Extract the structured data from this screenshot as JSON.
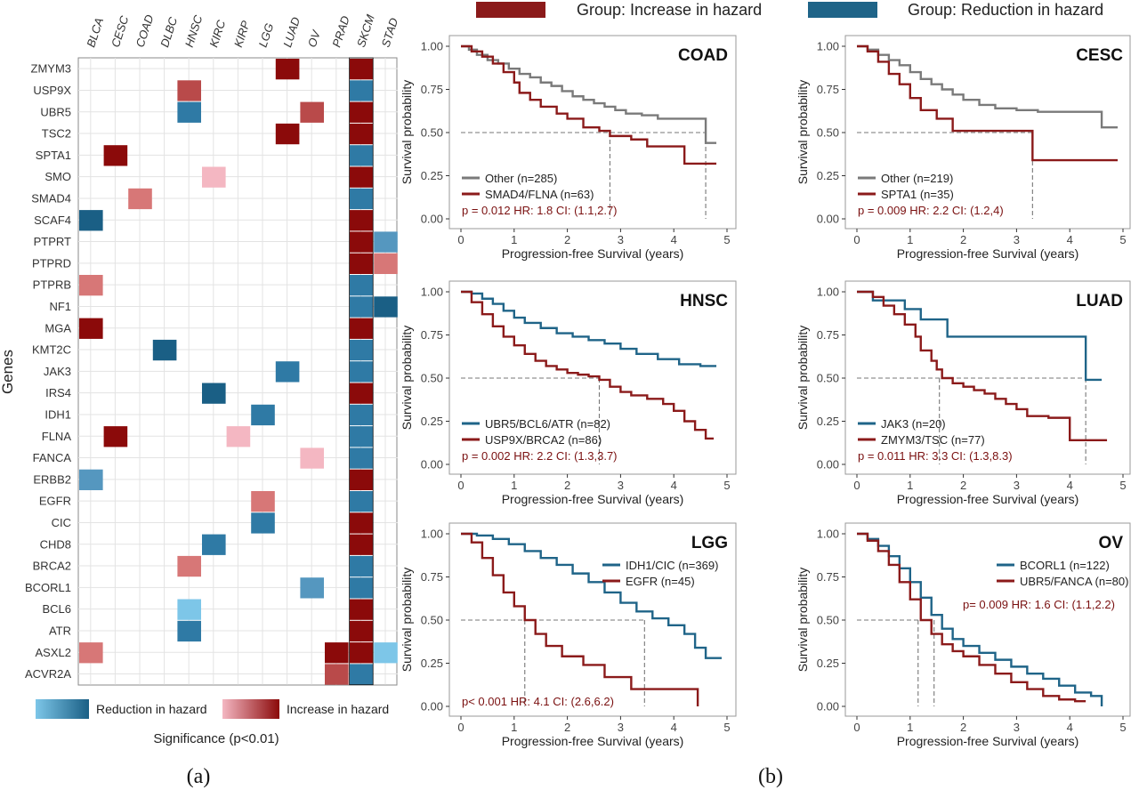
{
  "panel_labels": [
    "(a)",
    "(b)"
  ],
  "top_legend": {
    "items": [
      {
        "label": "Group: Increase in hazard",
        "color": "#8b1a1a"
      },
      {
        "label": "Group: Reduction in hazard",
        "color": "#1f6488"
      }
    ]
  },
  "heatmap": {
    "ylabel": "Genes",
    "legend": {
      "reduction_label": "Reduction in hazard",
      "increase_label": "Increase in hazard",
      "significance_label": "Significance (p<0.01)"
    },
    "colors": {
      "R3": "#1a5f85",
      "R2": "#2f7aa5",
      "R1": "#5597bf",
      "R0": "#7dc6e8",
      "I3": "#8b0a0a",
      "I2": "#b94a4a",
      "I1": "#d77777",
      "I0": "#f4b7c2"
    }
  },
  "chart_data": [
    {
      "type": "heatmap",
      "xlabel": "",
      "ylabel": "Genes",
      "columns": [
        "BLCA",
        "CESC",
        "COAD",
        "DLBC",
        "HNSC",
        "KIRC",
        "KIRP",
        "LGG",
        "LUAD",
        "OV",
        "PRAD",
        "SKCM",
        "STAD"
      ],
      "rows": [
        "ZMYM3",
        "USP9X",
        "UBR5",
        "TSC2",
        "SPTA1",
        "SMO",
        "SMAD4",
        "SCAF4",
        "PTPRT",
        "PTPRD",
        "PTPRB",
        "NF1",
        "MGA",
        "KMT2C",
        "JAK3",
        "IRS4",
        "IDH1",
        "FLNA",
        "FANCA",
        "ERBB2",
        "EGFR",
        "CIC",
        "CHD8",
        "BRCA2",
        "BCORL1",
        "BCL6",
        "ATR",
        "ASXL2",
        "ACVR2A"
      ],
      "cells": [
        [
          "ZMYM3",
          "LUAD",
          "I3"
        ],
        [
          "ZMYM3",
          "SKCM",
          "I3"
        ],
        [
          "USP9X",
          "HNSC",
          "I2"
        ],
        [
          "USP9X",
          "SKCM",
          "R2"
        ],
        [
          "UBR5",
          "HNSC",
          "R2"
        ],
        [
          "UBR5",
          "OV",
          "I2"
        ],
        [
          "UBR5",
          "SKCM",
          "I3"
        ],
        [
          "TSC2",
          "LUAD",
          "I3"
        ],
        [
          "TSC2",
          "SKCM",
          "I3"
        ],
        [
          "SPTA1",
          "CESC",
          "I3"
        ],
        [
          "SPTA1",
          "SKCM",
          "R2"
        ],
        [
          "SMO",
          "KIRC",
          "I0"
        ],
        [
          "SMO",
          "SKCM",
          "I3"
        ],
        [
          "SMAD4",
          "COAD",
          "I1"
        ],
        [
          "SMAD4",
          "SKCM",
          "R2"
        ],
        [
          "SCAF4",
          "BLCA",
          "R3"
        ],
        [
          "SCAF4",
          "SKCM",
          "I3"
        ],
        [
          "PTPRT",
          "SKCM",
          "I3"
        ],
        [
          "PTPRT",
          "STAD",
          "R1"
        ],
        [
          "PTPRD",
          "SKCM",
          "I3"
        ],
        [
          "PTPRD",
          "STAD",
          "I1"
        ],
        [
          "PTPRB",
          "BLCA",
          "I1"
        ],
        [
          "PTPRB",
          "SKCM",
          "R2"
        ],
        [
          "NF1",
          "SKCM",
          "R2"
        ],
        [
          "NF1",
          "STAD",
          "R3"
        ],
        [
          "MGA",
          "BLCA",
          "I3"
        ],
        [
          "MGA",
          "SKCM",
          "I3"
        ],
        [
          "KMT2C",
          "DLBC",
          "R3"
        ],
        [
          "KMT2C",
          "SKCM",
          "R2"
        ],
        [
          "JAK3",
          "LUAD",
          "R2"
        ],
        [
          "JAK3",
          "SKCM",
          "R2"
        ],
        [
          "IRS4",
          "KIRC",
          "R3"
        ],
        [
          "IRS4",
          "SKCM",
          "I3"
        ],
        [
          "IDH1",
          "LGG",
          "R2"
        ],
        [
          "IDH1",
          "SKCM",
          "R2"
        ],
        [
          "FLNA",
          "CESC",
          "I3"
        ],
        [
          "FLNA",
          "KIRP",
          "I0"
        ],
        [
          "FLNA",
          "SKCM",
          "R2"
        ],
        [
          "FANCA",
          "OV",
          "I0"
        ],
        [
          "FANCA",
          "SKCM",
          "R2"
        ],
        [
          "ERBB2",
          "BLCA",
          "R1"
        ],
        [
          "ERBB2",
          "SKCM",
          "I3"
        ],
        [
          "EGFR",
          "LGG",
          "I1"
        ],
        [
          "EGFR",
          "SKCM",
          "R2"
        ],
        [
          "CIC",
          "LGG",
          "R2"
        ],
        [
          "CIC",
          "SKCM",
          "I3"
        ],
        [
          "CHD8",
          "KIRC",
          "R2"
        ],
        [
          "CHD8",
          "SKCM",
          "I3"
        ],
        [
          "BRCA2",
          "HNSC",
          "I1"
        ],
        [
          "BRCA2",
          "SKCM",
          "R2"
        ],
        [
          "BCORL1",
          "OV",
          "R1"
        ],
        [
          "BCORL1",
          "SKCM",
          "R2"
        ],
        [
          "BCL6",
          "HNSC",
          "R0"
        ],
        [
          "BCL6",
          "SKCM",
          "I3"
        ],
        [
          "ATR",
          "HNSC",
          "R2"
        ],
        [
          "ATR",
          "SKCM",
          "I3"
        ],
        [
          "ASXL2",
          "BLCA",
          "I1"
        ],
        [
          "ASXL2",
          "PRAD",
          "I3"
        ],
        [
          "ASXL2",
          "SKCM",
          "I3"
        ],
        [
          "ASXL2",
          "STAD",
          "R0"
        ],
        [
          "ACVR2A",
          "PRAD",
          "I2"
        ],
        [
          "ACVR2A",
          "SKCM",
          "R2"
        ]
      ]
    },
    {
      "type": "line",
      "panel": "COAD",
      "title": "COAD",
      "xlabel": "Progression-free Survival (years)",
      "ylabel": "Survival probability",
      "xlim": [
        0,
        5
      ],
      "ylim": [
        0,
        1
      ],
      "xticks": [
        "0",
        "1",
        "2",
        "3",
        "4",
        "5"
      ],
      "yticks": [
        "0.00",
        "0.25",
        "0.50",
        "0.75",
        "1.00"
      ],
      "annotation": "p = 0.012 HR: 1.8  CI: (1.1,2.7)",
      "legend_position": "bottom-left",
      "series": [
        {
          "name": "Other (n=285)",
          "color": "#7a7a7a",
          "x": [
            0,
            0.15,
            0.3,
            0.5,
            0.7,
            0.9,
            1.1,
            1.3,
            1.5,
            1.7,
            1.9,
            2.1,
            2.3,
            2.5,
            2.7,
            2.9,
            3.1,
            3.4,
            3.7,
            4.0,
            4.3,
            4.6,
            4.6,
            4.8
          ],
          "y": [
            1,
            0.98,
            0.95,
            0.92,
            0.9,
            0.87,
            0.84,
            0.82,
            0.79,
            0.77,
            0.74,
            0.71,
            0.69,
            0.67,
            0.65,
            0.63,
            0.61,
            0.6,
            0.58,
            0.58,
            0.58,
            0.58,
            0.44,
            0.44
          ],
          "median": 4.6
        },
        {
          "name": "SMAD4/FLNA (n=63)",
          "color": "#8b1a1a",
          "x": [
            0,
            0.2,
            0.4,
            0.6,
            0.8,
            1.0,
            1.1,
            1.3,
            1.5,
            1.8,
            2.0,
            2.3,
            2.6,
            2.8,
            3.2,
            3.5,
            4.2,
            4.5,
            4.8
          ],
          "y": [
            1,
            0.97,
            0.94,
            0.9,
            0.85,
            0.79,
            0.73,
            0.69,
            0.65,
            0.61,
            0.58,
            0.53,
            0.51,
            0.48,
            0.46,
            0.42,
            0.32,
            0.32,
            0.32
          ],
          "median": 2.8
        }
      ]
    },
    {
      "type": "line",
      "panel": "CESC",
      "title": "CESC",
      "xlabel": "Progression-free Survival (years)",
      "ylabel": "Survival probability",
      "xlim": [
        0,
        5
      ],
      "ylim": [
        0,
        1
      ],
      "xticks": [
        "0",
        "1",
        "2",
        "3",
        "4",
        "5"
      ],
      "yticks": [
        "0.00",
        "0.25",
        "0.50",
        "0.75",
        "1.00"
      ],
      "annotation": "p = 0.009 HR: 2.2  CI: (1.2,4)",
      "legend_position": "bottom-left",
      "series": [
        {
          "name": "Other (n=219)",
          "color": "#7a7a7a",
          "x": [
            0,
            0.2,
            0.4,
            0.6,
            0.8,
            1.0,
            1.2,
            1.4,
            1.6,
            1.8,
            2.0,
            2.3,
            2.6,
            3.0,
            3.4,
            3.8,
            4.2,
            4.6,
            4.6,
            4.9
          ],
          "y": [
            1,
            0.98,
            0.95,
            0.92,
            0.89,
            0.85,
            0.81,
            0.78,
            0.75,
            0.72,
            0.69,
            0.66,
            0.64,
            0.63,
            0.62,
            0.62,
            0.62,
            0.62,
            0.53,
            0.53
          ],
          "median": null
        },
        {
          "name": "SPTA1 (n=35)",
          "color": "#8b1a1a",
          "x": [
            0,
            0.2,
            0.4,
            0.6,
            0.8,
            1.0,
            1.2,
            1.5,
            1.8,
            2.2,
            2.6,
            3.0,
            3.3,
            3.6,
            4.0,
            4.5,
            4.9
          ],
          "y": [
            1,
            0.97,
            0.91,
            0.84,
            0.78,
            0.7,
            0.63,
            0.58,
            0.51,
            0.51,
            0.51,
            0.51,
            0.34,
            0.34,
            0.34,
            0.34,
            0.34
          ],
          "median": 3.3
        }
      ]
    },
    {
      "type": "line",
      "panel": "HNSC",
      "title": "HNSC",
      "xlabel": "Progression-free Survival (years)",
      "ylabel": "Survival probability",
      "xlim": [
        0,
        5
      ],
      "ylim": [
        0,
        1
      ],
      "xticks": [
        "0",
        "1",
        "2",
        "3",
        "4",
        "5"
      ],
      "yticks": [
        "0.00",
        "0.25",
        "0.50",
        "0.75",
        "1.00"
      ],
      "annotation": "p = 0.002 HR: 2.2  CI: (1.3,3.7)",
      "legend_position": "bottom-left",
      "series": [
        {
          "name": "UBR5/BCL6/ATR (n=82)",
          "color": "#1f6488",
          "x": [
            0,
            0.2,
            0.4,
            0.6,
            0.8,
            1.0,
            1.2,
            1.5,
            1.8,
            2.1,
            2.4,
            2.7,
            3.0,
            3.3,
            3.7,
            4.1,
            4.5,
            4.8
          ],
          "y": [
            1,
            0.99,
            0.96,
            0.93,
            0.89,
            0.85,
            0.82,
            0.79,
            0.76,
            0.74,
            0.72,
            0.7,
            0.67,
            0.64,
            0.61,
            0.58,
            0.57,
            0.57
          ],
          "median": null
        },
        {
          "name": "USP9X/BRCA2 (n=86)",
          "color": "#8b1a1a",
          "x": [
            0,
            0.2,
            0.4,
            0.6,
            0.8,
            1.0,
            1.2,
            1.4,
            1.6,
            1.8,
            2.0,
            2.2,
            2.4,
            2.6,
            2.8,
            3.0,
            3.2,
            3.5,
            3.8,
            4.0,
            4.2,
            4.4,
            4.6,
            4.75
          ],
          "y": [
            1,
            0.94,
            0.87,
            0.8,
            0.74,
            0.69,
            0.64,
            0.6,
            0.57,
            0.55,
            0.53,
            0.52,
            0.51,
            0.49,
            0.45,
            0.42,
            0.4,
            0.38,
            0.35,
            0.31,
            0.25,
            0.2,
            0.15,
            0.15
          ],
          "median": 2.6
        }
      ]
    },
    {
      "type": "line",
      "panel": "LUAD",
      "title": "LUAD",
      "xlabel": "Progression-free Survival (years)",
      "ylabel": "Survival probability",
      "xlim": [
        0,
        5
      ],
      "ylim": [
        0,
        1
      ],
      "xticks": [
        "0",
        "1",
        "2",
        "3",
        "4",
        "5"
      ],
      "yticks": [
        "0.00",
        "0.25",
        "0.50",
        "0.75",
        "1.00"
      ],
      "annotation": "p = 0.011 HR: 3.3  CI: (1.3,8.3)",
      "legend_position": "bottom-left",
      "series": [
        {
          "name": "JAK3 (n=20)",
          "color": "#1f6488",
          "x": [
            0,
            0.3,
            0.6,
            0.9,
            1.2,
            1.5,
            1.7,
            2.2,
            2.8,
            3.4,
            4.0,
            4.3,
            4.3,
            4.6
          ],
          "y": [
            1,
            0.95,
            0.95,
            0.9,
            0.84,
            0.84,
            0.74,
            0.74,
            0.74,
            0.74,
            0.74,
            0.74,
            0.49,
            0.49
          ],
          "median": 4.3
        },
        {
          "name": "ZMYM3/TSC (n=77)",
          "color": "#8b1a1a",
          "x": [
            0,
            0.3,
            0.5,
            0.7,
            0.9,
            1.1,
            1.2,
            1.4,
            1.5,
            1.6,
            1.8,
            2.0,
            2.2,
            2.4,
            2.6,
            2.8,
            3.0,
            3.2,
            3.6,
            4.0,
            4.7
          ],
          "y": [
            1,
            0.97,
            0.92,
            0.87,
            0.81,
            0.74,
            0.66,
            0.6,
            0.55,
            0.5,
            0.47,
            0.45,
            0.43,
            0.41,
            0.38,
            0.35,
            0.32,
            0.28,
            0.27,
            0.14,
            0.14
          ],
          "median": 1.55
        }
      ]
    },
    {
      "type": "line",
      "panel": "LGG",
      "title": "LGG",
      "xlabel": "Progression-free Survival (years)",
      "ylabel": "Survival probability",
      "xlim": [
        0,
        5
      ],
      "ylim": [
        0,
        1
      ],
      "xticks": [
        "0",
        "1",
        "2",
        "3",
        "4",
        "5"
      ],
      "yticks": [
        "0.00",
        "0.25",
        "0.50",
        "0.75",
        "1.00"
      ],
      "annotation": "p< 0.001 HR: 4.1  CI: (2.6,6.2)",
      "legend_position": "top-right",
      "series": [
        {
          "name": "IDH1/CIC (n=369)",
          "color": "#1f6488",
          "x": [
            0,
            0.3,
            0.6,
            0.9,
            1.2,
            1.5,
            1.8,
            2.1,
            2.4,
            2.7,
            3.0,
            3.3,
            3.6,
            3.9,
            4.2,
            4.4,
            4.6,
            4.9
          ],
          "y": [
            1,
            0.99,
            0.97,
            0.94,
            0.9,
            0.86,
            0.82,
            0.77,
            0.72,
            0.66,
            0.6,
            0.55,
            0.51,
            0.47,
            0.42,
            0.34,
            0.28,
            0.28
          ],
          "median": 3.45
        },
        {
          "name": "EGFR (n=45)",
          "color": "#8b1a1a",
          "x": [
            0,
            0.2,
            0.4,
            0.6,
            0.8,
            1.0,
            1.2,
            1.4,
            1.6,
            1.9,
            2.3,
            2.7,
            3.2,
            3.8,
            4.4,
            4.45
          ],
          "y": [
            1,
            0.95,
            0.86,
            0.76,
            0.66,
            0.58,
            0.5,
            0.42,
            0.35,
            0.29,
            0.24,
            0.17,
            0.1,
            0.1,
            0.1,
            0.0
          ],
          "median": 1.2
        }
      ]
    },
    {
      "type": "line",
      "panel": "OV",
      "title": "OV",
      "xlabel": "Progression-free Survival (years)",
      "ylabel": "Survival probability",
      "xlim": [
        0,
        5
      ],
      "ylim": [
        0,
        1
      ],
      "xticks": [
        "0",
        "1",
        "2",
        "3",
        "4",
        "5"
      ],
      "yticks": [
        "0.00",
        "0.25",
        "0.50",
        "0.75",
        "1.00"
      ],
      "annotation": "p= 0.009 HR: 1.6  CI: (1.1,2.2)",
      "legend_position": "top-right",
      "series": [
        {
          "name": "BCORL1 (n=122)",
          "color": "#1f6488",
          "x": [
            0,
            0.2,
            0.4,
            0.6,
            0.8,
            1.0,
            1.2,
            1.4,
            1.6,
            1.8,
            2.0,
            2.3,
            2.6,
            2.9,
            3.2,
            3.5,
            3.8,
            4.1,
            4.4,
            4.6,
            4.6
          ],
          "y": [
            1,
            0.97,
            0.93,
            0.87,
            0.8,
            0.72,
            0.63,
            0.53,
            0.45,
            0.39,
            0.35,
            0.31,
            0.27,
            0.23,
            0.19,
            0.16,
            0.12,
            0.08,
            0.06,
            0.06,
            0.0
          ],
          "median": 1.45
        },
        {
          "name": "UBR5/FANCA (n=80)",
          "color": "#8b1a1a",
          "x": [
            0,
            0.2,
            0.4,
            0.6,
            0.8,
            1.0,
            1.2,
            1.4,
            1.6,
            1.8,
            2.0,
            2.3,
            2.6,
            2.9,
            3.2,
            3.5,
            3.8,
            4.1,
            4.3
          ],
          "y": [
            1,
            0.96,
            0.9,
            0.82,
            0.72,
            0.62,
            0.5,
            0.42,
            0.36,
            0.32,
            0.29,
            0.24,
            0.19,
            0.14,
            0.1,
            0.06,
            0.04,
            0.03,
            0.03
          ],
          "median": 1.15
        }
      ]
    }
  ]
}
